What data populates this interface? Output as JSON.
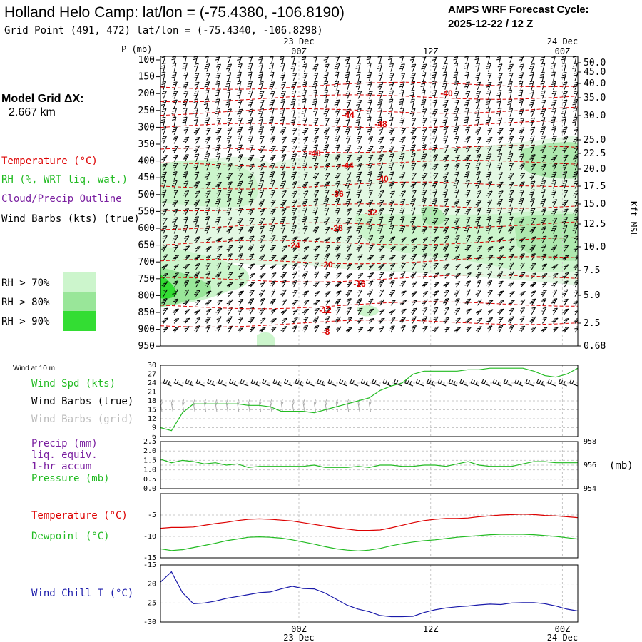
{
  "header": {
    "title": "Holland Helo Camp:  lat/lon = (-75.4380, -106.8190)",
    "grid_point": "Grid Point (491, 472) lat/lon = (-75.4340, -106.8298)",
    "cycle_label": "AMPS WRF Forecast Cycle:",
    "cycle_value": "2025-12-22 / 12  Z",
    "model_grid_label": "Model Grid ΔX:",
    "model_grid_value": "2.667 km"
  },
  "colors": {
    "temperature": "#dd0000",
    "rh_light": "#ccf5cc",
    "rh_mid": "#99e699",
    "rh_dark": "#33dd33",
    "cloud": "#7a1fa0",
    "wind_speed": "#22bb22",
    "wind_chill": "#1a1aaa"
  },
  "legend": {
    "temperature": "Temperature (°C)",
    "rh": "RH (%, WRT liq. wat.)",
    "cloud": "Cloud/Precip Outline",
    "wind": "Wind Barbs (kts) (true)",
    "rh70": "RH > 70%",
    "rh80": "RH > 80%",
    "rh90": "RH > 90%"
  },
  "time_axis": {
    "top": [
      {
        "date": "23 Dec",
        "time": "00Z"
      },
      {
        "date": "",
        "time": "12Z"
      },
      {
        "date": "24 Dec",
        "time": "00Z"
      }
    ],
    "bottom": [
      {
        "time": "00Z",
        "date": "23 Dec"
      },
      {
        "time": "12Z",
        "date": ""
      },
      {
        "time": "00Z",
        "date": "24 Dec"
      }
    ]
  },
  "chart_data": [
    {
      "type": "heatmap",
      "name": "time-height cross-section",
      "ylabel_left": "P (mb)",
      "ylabel_right": "Kft MSL",
      "pressure_ticks": [
        "100",
        "150",
        "200",
        "250",
        "300",
        "350",
        "400",
        "450",
        "500",
        "550",
        "600",
        "650",
        "700",
        "750",
        "800",
        "850",
        "900",
        "950"
      ],
      "height_ticks": [
        "50.0",
        "45.0",
        "40.0",
        "35.0",
        "30.0",
        "25.0",
        "22.5",
        "20.0",
        "17.5",
        "15.0",
        "12.5",
        "10.0",
        "7.5",
        "5.0",
        "2.5",
        "0.68"
      ],
      "temperature_contour_labels": [
        "-40",
        "-44",
        "-48",
        "-48",
        "-44",
        "-40",
        "-36",
        "-32",
        "-28",
        "-24",
        "-20",
        "-16",
        "-12",
        "-8"
      ]
    },
    {
      "type": "line",
      "name": "10 m wind",
      "title": "Wind at 10 m",
      "ylabel": "Wind Spd (kts)",
      "barbs_true_label": "Wind Barbs (true)",
      "barbs_grid_label": "Wind Barbs (grid)",
      "ylim": [
        6,
        30
      ],
      "y_ticks": [
        "30",
        "27",
        "24",
        "21",
        "18",
        "15",
        "12",
        "9",
        "6"
      ],
      "hours": [
        0,
        1,
        2,
        3,
        4,
        5,
        6,
        7,
        8,
        9,
        10,
        11,
        12,
        13,
        14,
        15,
        16,
        17,
        18,
        19,
        20,
        21,
        22,
        23,
        24,
        25,
        26,
        27,
        28,
        29,
        30,
        31,
        32,
        33,
        34,
        35,
        36,
        37,
        38
      ],
      "values": [
        9,
        8,
        14,
        17,
        17,
        17,
        17,
        17,
        16.5,
        16.5,
        16,
        14.5,
        14.5,
        14.5,
        14,
        15,
        16,
        17,
        18,
        19,
        21.5,
        23,
        24,
        27,
        28,
        28,
        28,
        28,
        28.5,
        28.5,
        29,
        29,
        29,
        29,
        28,
        26.5,
        26,
        27,
        29
      ]
    },
    {
      "type": "line",
      "name": "precip and pressure",
      "ylabel": "Precip (mm)",
      "precip_note_1": "liq. equiv.",
      "precip_note_2": "1-hr accum",
      "pressure_label": "Pressure (mb)",
      "pressure_unit": "(mb)",
      "precip_ticks": [
        "2.5",
        "2.0",
        "1.5",
        "1.0",
        "0.5",
        "0.0"
      ],
      "pressure_ticks": [
        "958",
        "956",
        "954"
      ],
      "pressure_ylim": [
        954,
        958
      ],
      "precip_values": [],
      "hours": [
        0,
        1,
        2,
        3,
        4,
        5,
        6,
        7,
        8,
        9,
        10,
        11,
        12,
        13,
        14,
        15,
        16,
        17,
        18,
        19,
        20,
        21,
        22,
        23,
        24,
        25,
        26,
        27,
        28,
        29,
        30,
        31,
        32,
        33,
        34,
        35,
        36,
        37,
        38
      ],
      "pressure_values": [
        956.5,
        956.2,
        956.4,
        956.3,
        956.1,
        956.2,
        956.0,
        956.1,
        955.8,
        955.9,
        955.9,
        955.9,
        955.9,
        955.9,
        956.0,
        955.8,
        955.8,
        955.8,
        955.9,
        955.8,
        956.0,
        956.0,
        955.9,
        955.9,
        956.0,
        956.0,
        955.9,
        956.1,
        956.3,
        956.0,
        955.9,
        955.9,
        955.9,
        956.1,
        956.3,
        956.3,
        956.2,
        956.2,
        956.2
      ]
    },
    {
      "type": "line",
      "name": "temperature and dewpoint",
      "series_names": [
        "Temperature (°C)",
        "Dewpoint (°C)"
      ],
      "ylim": [
        -15,
        0
      ],
      "y_ticks": [
        "-5",
        "-10",
        "-15"
      ],
      "hours": [
        0,
        1,
        2,
        3,
        4,
        5,
        6,
        7,
        8,
        9,
        10,
        11,
        12,
        13,
        14,
        15,
        16,
        17,
        18,
        19,
        20,
        21,
        22,
        23,
        24,
        25,
        26,
        27,
        28,
        29,
        30,
        31,
        32,
        33,
        34,
        35,
        36,
        37,
        38
      ],
      "temperature": [
        -8.1,
        -7.9,
        -7.9,
        -7.8,
        -7.4,
        -7.0,
        -6.7,
        -6.3,
        -6.0,
        -5.9,
        -6.0,
        -6.2,
        -6.4,
        -6.8,
        -7.2,
        -7.6,
        -8.0,
        -8.3,
        -8.6,
        -8.6,
        -8.5,
        -8.0,
        -7.4,
        -6.8,
        -6.3,
        -6.0,
        -5.8,
        -5.8,
        -5.7,
        -5.4,
        -5.2,
        -5.0,
        -4.9,
        -4.8,
        -4.9,
        -5.1,
        -5.2,
        -5.4,
        -5.6
      ],
      "dewpoint": [
        -12.9,
        -13.3,
        -13.1,
        -12.6,
        -12.1,
        -11.6,
        -11.0,
        -10.6,
        -10.2,
        -10.1,
        -10.2,
        -10.4,
        -10.8,
        -11.3,
        -11.8,
        -12.4,
        -12.9,
        -13.2,
        -13.4,
        -13.2,
        -12.8,
        -12.2,
        -11.7,
        -11.3,
        -11.0,
        -10.8,
        -10.5,
        -10.2,
        -10.0,
        -9.8,
        -9.6,
        -9.5,
        -9.5,
        -9.5,
        -9.6,
        -9.8,
        -10.0,
        -10.3,
        -10.6
      ]
    },
    {
      "type": "line",
      "name": "wind chill",
      "ylabel": "Wind Chill T (°C)",
      "ylim": [
        -30,
        -15
      ],
      "y_ticks": [
        "-15",
        "-20",
        "-25",
        "-30"
      ],
      "hours": [
        0,
        1,
        2,
        3,
        4,
        5,
        6,
        7,
        8,
        9,
        10,
        11,
        12,
        13,
        14,
        15,
        16,
        17,
        18,
        19,
        20,
        21,
        22,
        23,
        24,
        25,
        26,
        27,
        28,
        29,
        30,
        31,
        32,
        33,
        34,
        35,
        36,
        37,
        38
      ],
      "values": [
        -19.5,
        -16.8,
        -22.3,
        -25.2,
        -25.0,
        -24.5,
        -23.8,
        -23.3,
        -22.8,
        -22.3,
        -22.1,
        -21.3,
        -20.6,
        -21.2,
        -21.3,
        -22.4,
        -24.0,
        -25.6,
        -26.6,
        -27.3,
        -28.3,
        -28.6,
        -28.6,
        -28.5,
        -27.5,
        -26.8,
        -26.3,
        -26.0,
        -25.8,
        -25.5,
        -25.3,
        -25.4,
        -25.0,
        -24.9,
        -24.9,
        -25.2,
        -25.8,
        -26.6,
        -27.1
      ]
    }
  ]
}
